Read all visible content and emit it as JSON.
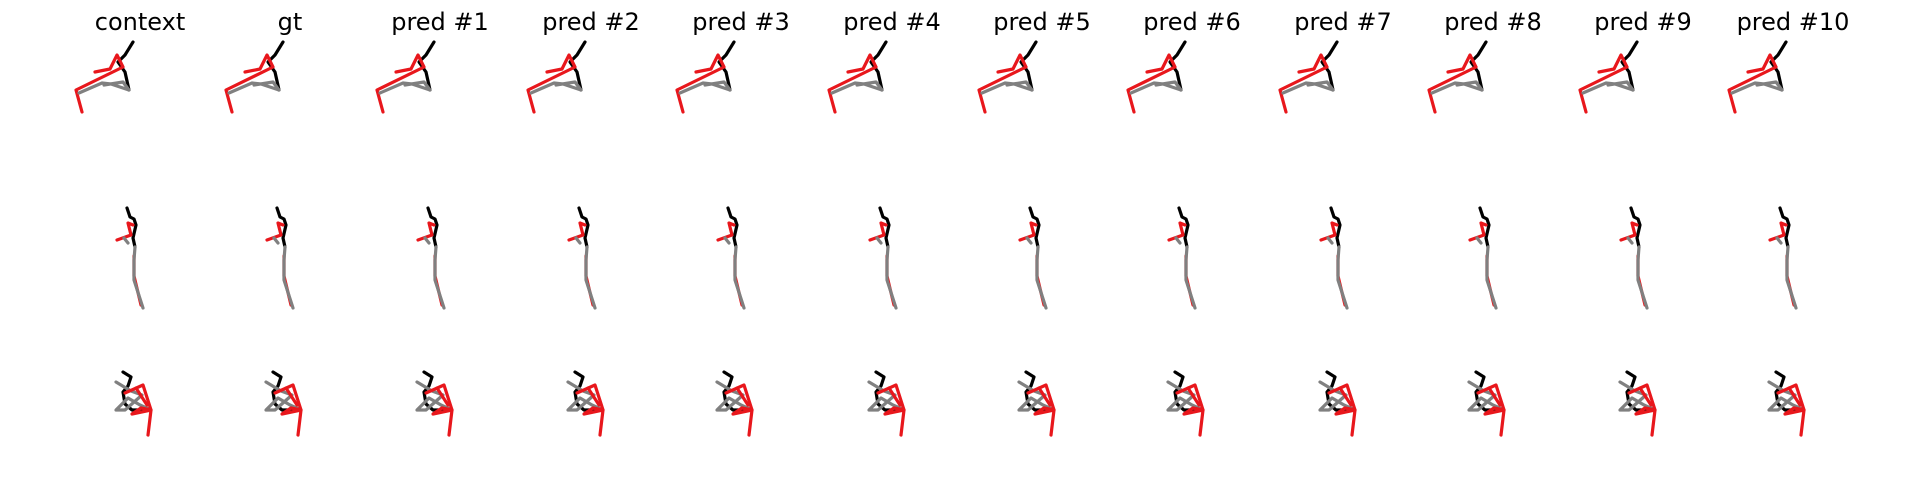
{
  "columns": [
    "context",
    "gt",
    "pred #1",
    "pred #2",
    "pred #3",
    "pred #4",
    "pred #5",
    "pred #6",
    "pred #7",
    "pred #8",
    "pred #9",
    "pred #10"
  ],
  "rows": [
    "pose-view-1",
    "pose-view-2",
    "pose-view-3"
  ],
  "colors": {
    "left_limb": "#e8171c",
    "right_limb": "#808080",
    "torso": "#000000"
  }
}
